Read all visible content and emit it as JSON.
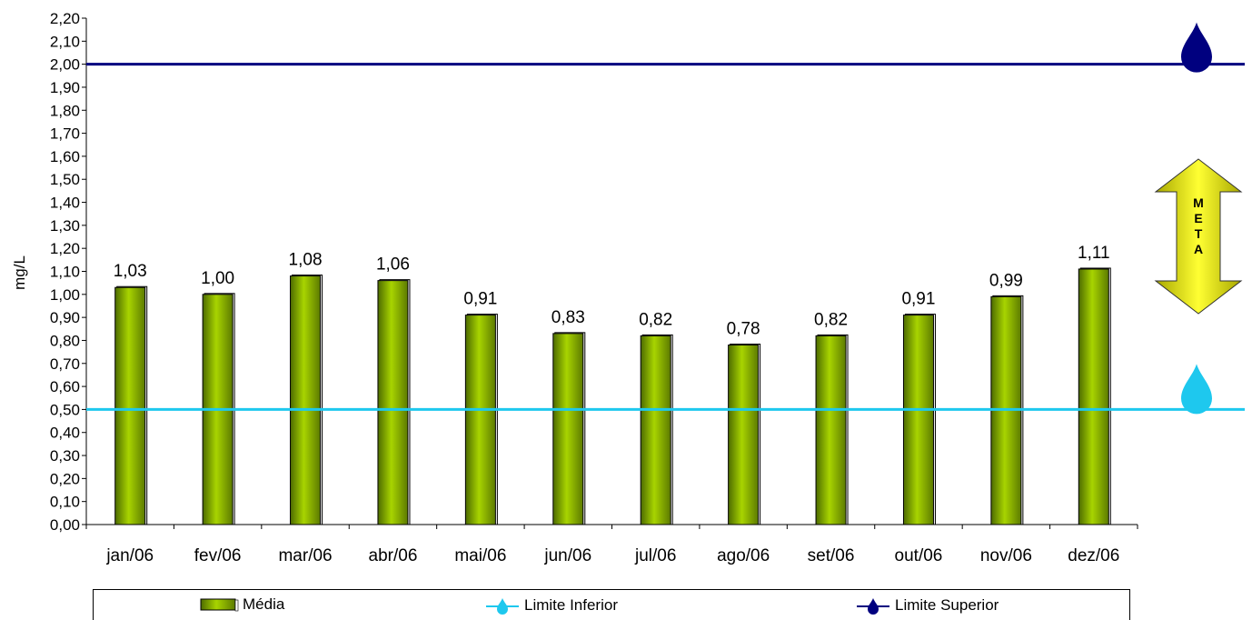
{
  "chart_data": {
    "type": "bar",
    "ylabel": "mg/L",
    "ylim": [
      0,
      2.2
    ],
    "yticks": [
      "0,00",
      "0,10",
      "0,20",
      "0,30",
      "0,40",
      "0,50",
      "0,60",
      "0,70",
      "0,80",
      "0,90",
      "1,00",
      "1,10",
      "1,20",
      "1,30",
      "1,40",
      "1,50",
      "1,60",
      "1,70",
      "1,80",
      "1,90",
      "2,00",
      "2,10",
      "2,20"
    ],
    "categories": [
      "jan/06",
      "fev/06",
      "mar/06",
      "abr/06",
      "mai/06",
      "jun/06",
      "jul/06",
      "ago/06",
      "set/06",
      "out/06",
      "nov/06",
      "dez/06"
    ],
    "series": [
      {
        "name": "Média",
        "values": [
          1.03,
          1.0,
          1.08,
          1.06,
          0.91,
          0.83,
          0.82,
          0.78,
          0.82,
          0.91,
          0.99,
          1.11
        ],
        "labels": [
          "1,03",
          "1,00",
          "1,08",
          "1,06",
          "0,91",
          "0,83",
          "0,82",
          "0,78",
          "0,82",
          "0,91",
          "0,99",
          "1,11"
        ],
        "color": "#7fa800"
      },
      {
        "name": "Limite Inferior",
        "value": 0.5,
        "color": "#1ec8ee"
      },
      {
        "name": "Limite Superior",
        "value": 2.0,
        "color": "#00007f"
      }
    ],
    "annotation": {
      "text": "META",
      "color": "#f2f200"
    },
    "legend_position": "bottom",
    "grid": false
  }
}
